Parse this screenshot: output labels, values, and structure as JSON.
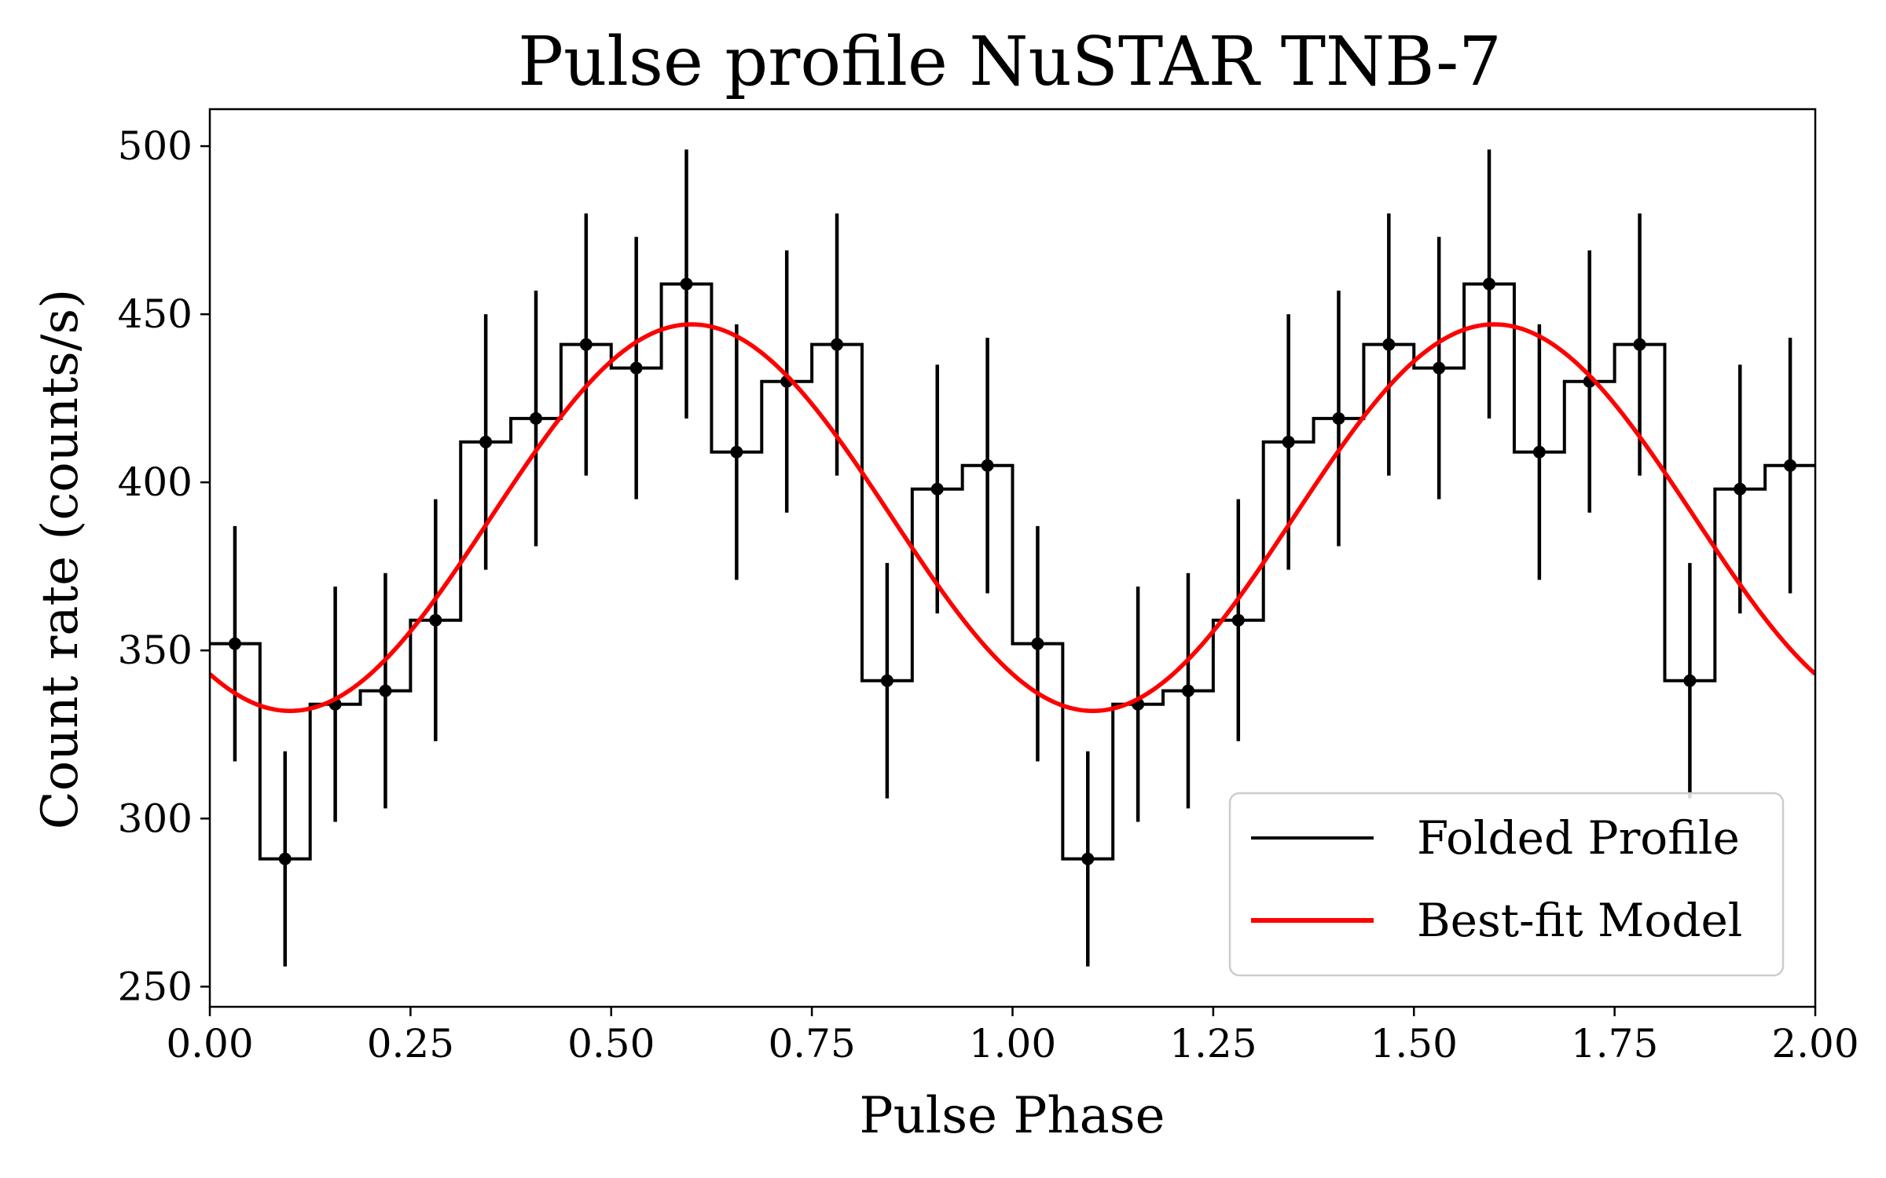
{
  "chart_data": {
    "type": "line",
    "title": "Pulse profile NuSTAR TNB-7",
    "xlabel": "Pulse Phase",
    "ylabel": "Count rate (counts/s)",
    "xlim": [
      0.0,
      2.0
    ],
    "ylim": [
      244,
      511
    ],
    "xticks": [
      "0.00",
      "0.25",
      "0.50",
      "0.75",
      "1.00",
      "1.25",
      "1.50",
      "1.75",
      "2.00"
    ],
    "yticks": [
      "250",
      "300",
      "350",
      "400",
      "450",
      "500"
    ],
    "legend_position": "lower-right",
    "colors": {
      "profile": "#000000",
      "model": "#ff0000"
    },
    "series": [
      {
        "name": "Folded Profile",
        "style": "step-with-errorbars",
        "bin_width": 0.0625,
        "x": [
          0.03125,
          0.09375,
          0.15625,
          0.21875,
          0.28125,
          0.34375,
          0.40625,
          0.46875,
          0.53125,
          0.59375,
          0.65625,
          0.71875,
          0.78125,
          0.84375,
          0.90625,
          0.96875,
          1.03125,
          1.09375,
          1.15625,
          1.21875,
          1.28125,
          1.34375,
          1.40625,
          1.46875,
          1.53125,
          1.59375,
          1.65625,
          1.71875,
          1.78125,
          1.84375,
          1.90625,
          1.96875
        ],
        "values": [
          352,
          288,
          334,
          338,
          359,
          412,
          419,
          441,
          434,
          459,
          409,
          430,
          441,
          341,
          398,
          405,
          352,
          288,
          334,
          338,
          359,
          412,
          419,
          441,
          434,
          459,
          409,
          430,
          441,
          341,
          398,
          405
        ],
        "errors": [
          35,
          32,
          35,
          35,
          36,
          38,
          38,
          39,
          39,
          40,
          38,
          39,
          39,
          35,
          37,
          38,
          35,
          32,
          35,
          35,
          36,
          38,
          38,
          39,
          39,
          40,
          38,
          39,
          39,
          35,
          37,
          38
        ]
      },
      {
        "name": "Best-fit Model",
        "style": "sinusoid",
        "mean": 389.5,
        "amplitude": 57.5,
        "peak_phase": 0.6,
        "period": 1.0
      }
    ]
  }
}
